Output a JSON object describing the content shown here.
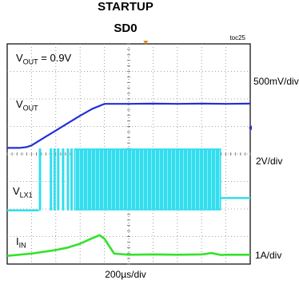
{
  "chart_data": {
    "type": "line",
    "title": "STARTUP",
    "subtitle": "SD0",
    "figure_id": "toc25",
    "time_scale": "200µs/div",
    "x_divisions": 10,
    "y_divisions": 8,
    "trigger_marker_color": "#e08a1e",
    "reference_marker_color": "#2233cc",
    "annotation": {
      "prefix": "V",
      "sub": "OUT",
      "suffix": " = 0.9V"
    },
    "series": [
      {
        "label": "V",
        "label_sub": "OUT",
        "scale": "500mV/div",
        "color": "#2030d8",
        "x": [
          0,
          0.2,
          0.5,
          0.8,
          1.0,
          1.5,
          2.0,
          2.5,
          3.0,
          3.5,
          4.0,
          5.0,
          6.0,
          7.0,
          8.0,
          9.0,
          10.0
        ],
        "y": [
          0,
          0,
          0,
          0.03,
          0.09,
          0.36,
          0.63,
          0.9,
          1.17,
          1.42,
          1.6,
          1.6,
          1.61,
          1.6,
          1.61,
          1.6,
          1.61
        ]
      },
      {
        "label": "V",
        "label_sub": "LX1",
        "scale": "2V/div",
        "color": "#33ddee",
        "baseline": 0,
        "pulse_high": 3.0,
        "settle_level": 0.6,
        "switching_start_div": 1.3,
        "switching_end_div": 10.0,
        "switching_stop_div": 8.8,
        "burst_pulses_div": [
          1.3,
          1.75,
          1.9,
          2.05,
          2.25,
          2.45,
          2.6
        ],
        "dense_start_div": 2.75
      },
      {
        "label": "I",
        "label_sub": "IN",
        "scale": "1A/div",
        "color": "#33e22a",
        "x": [
          0,
          1.0,
          2.0,
          2.5,
          3.0,
          3.4,
          3.8,
          4.0,
          4.4,
          5.0,
          6.0,
          7.0,
          8.0,
          8.4,
          8.8,
          9.0,
          10.0
        ],
        "y": [
          0,
          0.08,
          0.21,
          0.3,
          0.44,
          0.6,
          0.75,
          0.62,
          0.08,
          0.04,
          0.05,
          0.04,
          0.05,
          0.1,
          0.03,
          0.04,
          0.04
        ]
      }
    ]
  }
}
